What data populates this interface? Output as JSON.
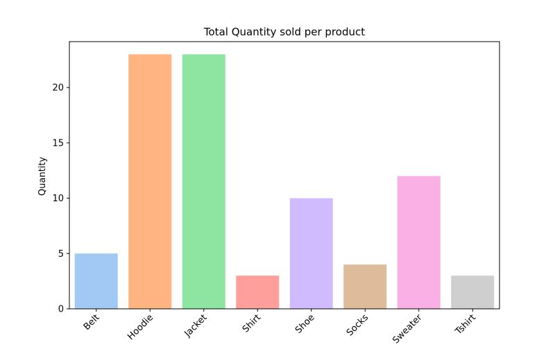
{
  "chart_data": {
    "type": "bar",
    "title": "Total Quantity sold per product",
    "xlabel": "",
    "ylabel": "Quantity",
    "categories": [
      "Belt",
      "Hoodie",
      "Jacket",
      "Shirt",
      "Shoe",
      "Socks",
      "Sweater",
      "Tshirt"
    ],
    "values": [
      5,
      23,
      23,
      3,
      10,
      4,
      12,
      3
    ],
    "colors": [
      "#a1c9f4",
      "#ffb482",
      "#8de5a1",
      "#ff9f9b",
      "#d0bbff",
      "#debb9b",
      "#fab0e4",
      "#cfcfcf"
    ],
    "ylim": [
      0,
      24.15
    ],
    "yticks": [
      0,
      5,
      10,
      15,
      20
    ],
    "xtick_rotation": 45,
    "grid": false,
    "legend": "none"
  }
}
